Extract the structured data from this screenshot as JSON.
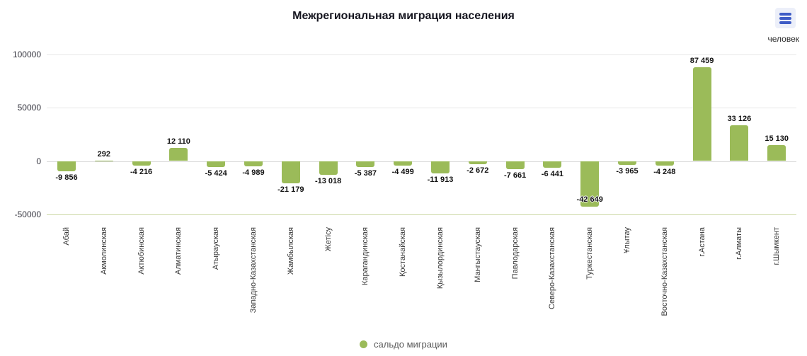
{
  "header": {
    "title": "Межрегиональная миграция населения",
    "units_label": "человек",
    "menu_icon": "hamburger-menu-icon"
  },
  "legend": {
    "label": "сальдо миграции"
  },
  "colors": {
    "bar": "#9BBB59",
    "grid": "#e6e6e6",
    "zero_line": "#d9d9d9",
    "baseline_tint": "#ccd8a4",
    "menu_button_bg": "#eceff9",
    "menu_button_bars": "#3e5cc6",
    "title_text": "#15151f",
    "axis_text": "#35353f",
    "legend_text": "#595959"
  },
  "chart_data": {
    "type": "bar",
    "title": "Межрегиональная миграция населения",
    "ylabel": "человек",
    "legend_position": "bottom",
    "grid": "horizontal-only",
    "ylim": [
      -60000,
      110000
    ],
    "yticks": [
      100000,
      50000,
      0,
      -50000
    ],
    "categories": [
      "Абай",
      "Акмолинская",
      "Актюбинская",
      "Алматинская",
      "Атырауская",
      "Западно-Казахстанская",
      "Жамбылская",
      "Жетісу",
      "Карагандинская",
      "Қостанайская",
      "Қызылординская",
      "Мангыстауская",
      "Павлодарская",
      "Северо-Казахстанская",
      "Туркестанская",
      "Ұлытау",
      "Восточно-Казахстанская",
      "г.Астана",
      "г.Алматы",
      "г.Шымкент"
    ],
    "series": [
      {
        "name": "сальдо миграции",
        "values": [
          -9856,
          292,
          -4216,
          12110,
          -5424,
          -4989,
          -21179,
          -13018,
          -5387,
          -4499,
          -11913,
          -2672,
          -7661,
          -6441,
          -42649,
          -3965,
          -4248,
          87459,
          33126,
          15130
        ]
      }
    ]
  }
}
